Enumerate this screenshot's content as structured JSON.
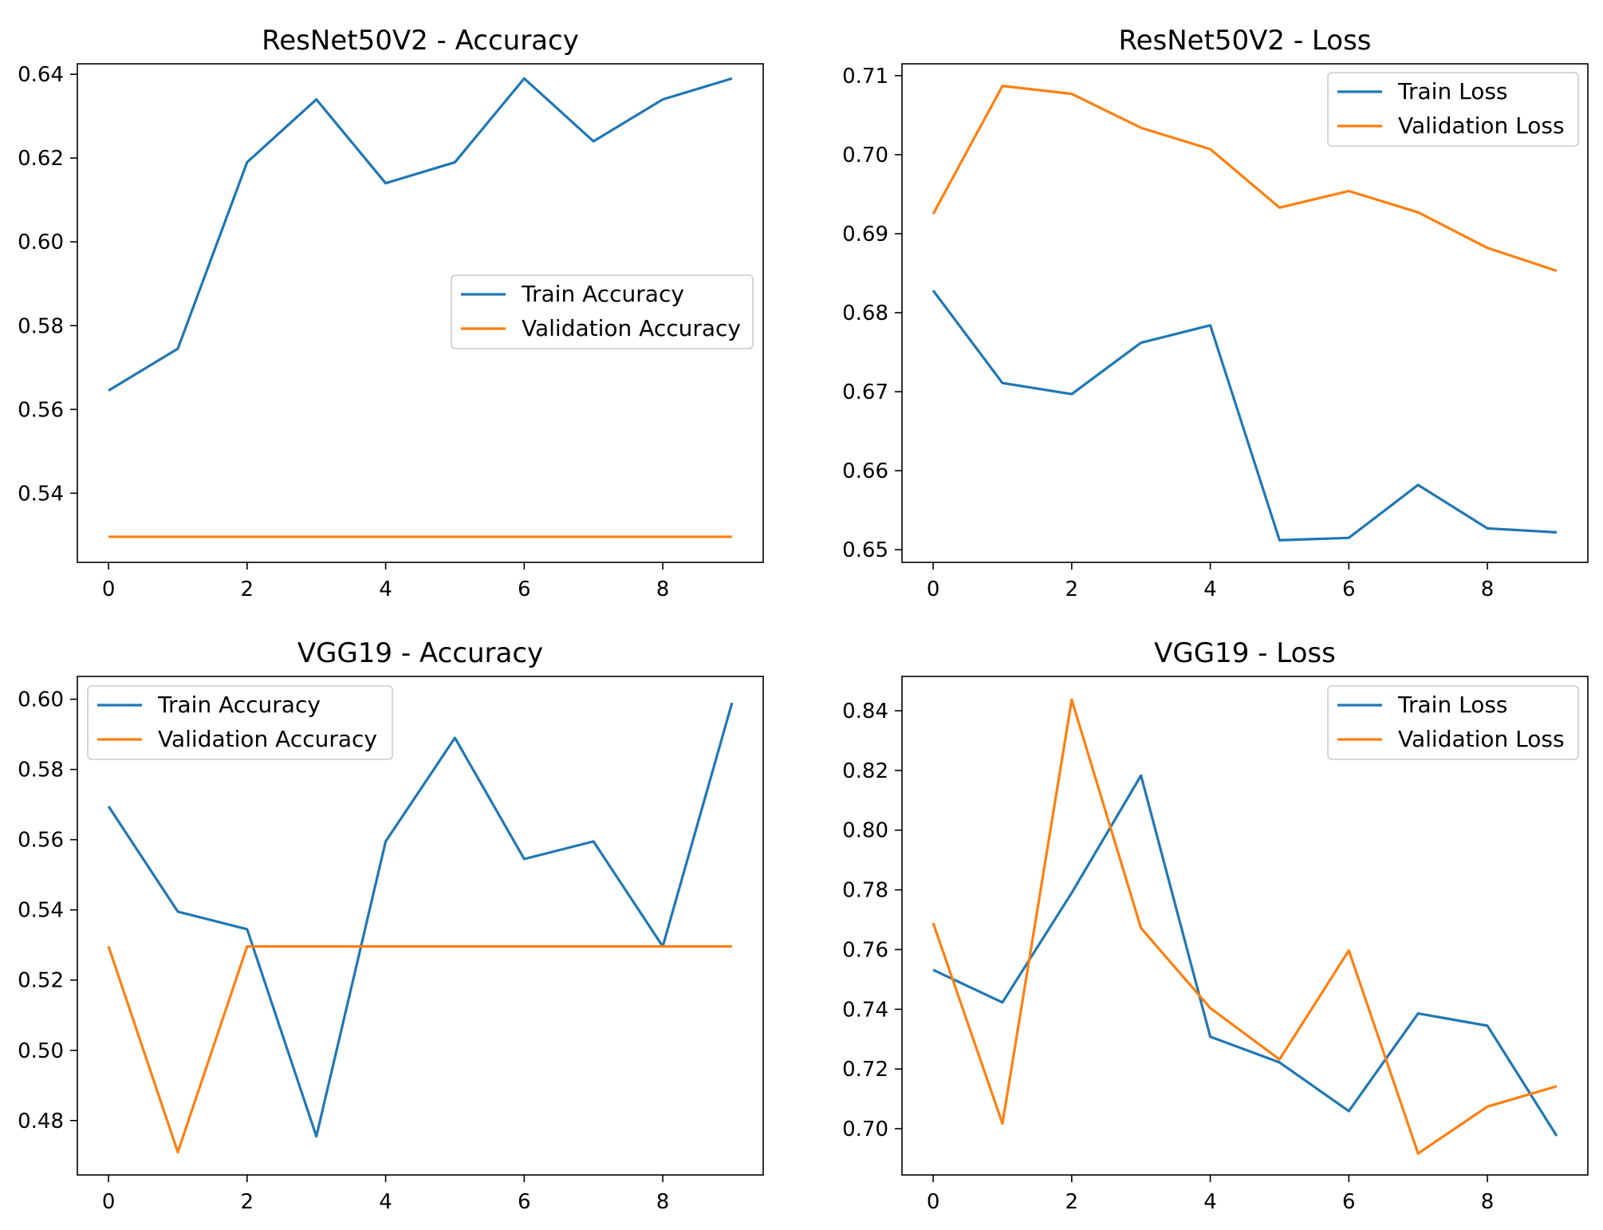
{
  "chart_data": [
    {
      "type": "line",
      "title": "ResNet50V2 - Accuracy",
      "xlabel": "",
      "ylabel": "",
      "x": [
        0,
        1,
        2,
        3,
        4,
        5,
        6,
        7,
        8,
        9
      ],
      "xlim": [
        -0.45,
        9.45
      ],
      "ylim": [
        0.5235,
        0.6425
      ],
      "xticks": [
        0,
        2,
        4,
        6,
        8
      ],
      "yticks": [
        0.54,
        0.56,
        0.58,
        0.6,
        0.62,
        0.64
      ],
      "xtick_labels": [
        "0",
        "2",
        "4",
        "6",
        "8"
      ],
      "ytick_labels": [
        "0.54",
        "0.56",
        "0.58",
        "0.60",
        "0.62",
        "0.64"
      ],
      "legend": "center-right",
      "grid": false,
      "series": [
        {
          "name": "Train Accuracy",
          "color": "#1f77b4",
          "values": [
            0.5645,
            0.5745,
            0.619,
            0.634,
            0.614,
            0.619,
            0.639,
            0.624,
            0.634,
            0.639
          ]
        },
        {
          "name": "Validation Accuracy",
          "color": "#ff7f0e",
          "values": [
            0.5296,
            0.5296,
            0.5296,
            0.5296,
            0.5296,
            0.5296,
            0.5296,
            0.5296,
            0.5296,
            0.5296
          ]
        }
      ]
    },
    {
      "type": "line",
      "title": "ResNet50V2 - Loss",
      "xlabel": "",
      "ylabel": "",
      "x": [
        0,
        1,
        2,
        3,
        4,
        5,
        6,
        7,
        8,
        9
      ],
      "xlim": [
        -0.45,
        9.45
      ],
      "ylim": [
        0.6484,
        0.7115
      ],
      "xticks": [
        0,
        2,
        4,
        6,
        8
      ],
      "yticks": [
        0.65,
        0.66,
        0.67,
        0.68,
        0.69,
        0.7,
        0.71
      ],
      "xtick_labels": [
        "0",
        "2",
        "4",
        "6",
        "8"
      ],
      "ytick_labels": [
        "0.65",
        "0.66",
        "0.67",
        "0.68",
        "0.69",
        "0.70",
        "0.71"
      ],
      "legend": "upper-right",
      "grid": false,
      "series": [
        {
          "name": "Train Loss",
          "color": "#1f77b4",
          "values": [
            0.6828,
            0.6711,
            0.6697,
            0.6762,
            0.6784,
            0.6512,
            0.6515,
            0.6582,
            0.6527,
            0.6522
          ]
        },
        {
          "name": "Validation Loss",
          "color": "#ff7f0e",
          "values": [
            0.6925,
            0.7087,
            0.7077,
            0.7034,
            0.7007,
            0.6933,
            0.6954,
            0.6927,
            0.6882,
            0.6853
          ]
        }
      ]
    },
    {
      "type": "line",
      "title": "VGG19 - Accuracy",
      "xlabel": "",
      "ylabel": "",
      "x": [
        0,
        1,
        2,
        3,
        4,
        5,
        6,
        7,
        8,
        9
      ],
      "xlim": [
        -0.45,
        9.45
      ],
      "ylim": [
        0.4645,
        0.6065
      ],
      "xticks": [
        0,
        2,
        4,
        6,
        8
      ],
      "yticks": [
        0.48,
        0.5,
        0.52,
        0.54,
        0.56,
        0.58,
        0.6
      ],
      "xtick_labels": [
        "0",
        "2",
        "4",
        "6",
        "8"
      ],
      "ytick_labels": [
        "0.48",
        "0.50",
        "0.52",
        "0.54",
        "0.56",
        "0.58",
        "0.60"
      ],
      "legend": "upper-left",
      "grid": false,
      "series": [
        {
          "name": "Train Accuracy",
          "color": "#1f77b4",
          "values": [
            0.5695,
            0.5395,
            0.5345,
            0.4755,
            0.5595,
            0.589,
            0.5545,
            0.5595,
            0.5296,
            0.599
          ]
        },
        {
          "name": "Validation Accuracy",
          "color": "#ff7f0e",
          "values": [
            0.5296,
            0.471,
            0.5296,
            0.5296,
            0.5296,
            0.5296,
            0.5296,
            0.5296,
            0.5296,
            0.5296
          ]
        }
      ]
    },
    {
      "type": "line",
      "title": "VGG19 - Loss",
      "xlabel": "",
      "ylabel": "",
      "x": [
        0,
        1,
        2,
        3,
        4,
        5,
        6,
        7,
        8,
        9
      ],
      "xlim": [
        -0.45,
        9.45
      ],
      "ylim": [
        0.6845,
        0.8515
      ],
      "xticks": [
        0,
        2,
        4,
        6,
        8
      ],
      "yticks": [
        0.7,
        0.72,
        0.74,
        0.76,
        0.78,
        0.8,
        0.82,
        0.84
      ],
      "xtick_labels": [
        "0",
        "2",
        "4",
        "6",
        "8"
      ],
      "ytick_labels": [
        "0.70",
        "0.72",
        "0.74",
        "0.76",
        "0.78",
        "0.80",
        "0.82",
        "0.84"
      ],
      "legend": "upper-right",
      "grid": false,
      "series": [
        {
          "name": "Train Loss",
          "color": "#1f77b4",
          "values": [
            0.7532,
            0.7423,
            0.779,
            0.8183,
            0.7308,
            0.7222,
            0.7059,
            0.7386,
            0.7345,
            0.6976
          ]
        },
        {
          "name": "Validation Loss",
          "color": "#ff7f0e",
          "values": [
            0.7689,
            0.7017,
            0.8437,
            0.7672,
            0.7404,
            0.7232,
            0.7597,
            0.6917,
            0.7074,
            0.7142
          ]
        }
      ]
    }
  ]
}
